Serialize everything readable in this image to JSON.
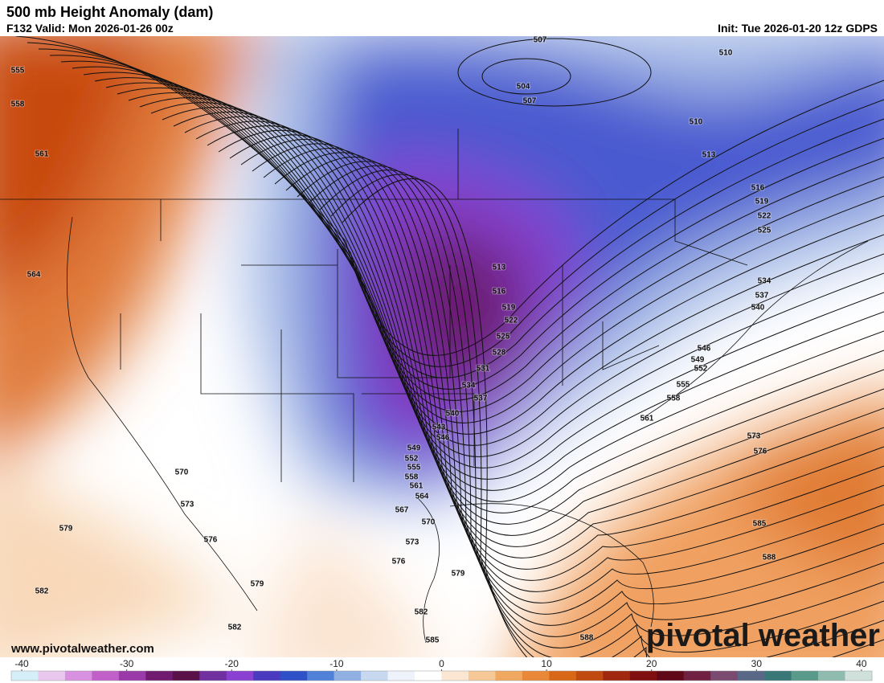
{
  "header": {
    "title": "500 mb Height Anomaly (dam)",
    "subtitle": "F132 Valid: Mon 2026-01-26 00z",
    "init": "Init: Tue 2026-01-20 12z GDPS"
  },
  "footer": {
    "url": "www.pivotalweather.com",
    "logo": "pivotal weather"
  },
  "contour_labels": [
    "555",
    "558",
    "561",
    "564",
    "570",
    "573",
    "576",
    "579",
    "579",
    "582",
    "582",
    "582",
    "585",
    "588",
    "588",
    "585",
    "576",
    "573",
    "561",
    "558",
    "555",
    "552",
    "549",
    "546",
    "540",
    "537",
    "534",
    "525",
    "522",
    "519",
    "516",
    "513",
    "510",
    "510",
    "507",
    "507",
    "504",
    "513",
    "516",
    "519",
    "522",
    "525",
    "528",
    "531",
    "534",
    "537",
    "540",
    "543",
    "546",
    "549",
    "552",
    "555",
    "558",
    "561",
    "564",
    "567",
    "570",
    "573",
    "576",
    "579"
  ],
  "colorbar": {
    "lim": [
      -41,
      41
    ],
    "ticks": [
      -40,
      -30,
      -20,
      -10,
      0,
      10,
      20,
      30,
      40
    ],
    "colors": [
      "#d6eef8",
      "#e8c8ee",
      "#d890e0",
      "#c060c8",
      "#9a3aa8",
      "#701a70",
      "#5a1048",
      "#7030a0",
      "#8a40d0",
      "#4a3ac0",
      "#3050c8",
      "#5080d8",
      "#90b0e4",
      "#c8d8f0",
      "#eef2fa",
      "#ffffff",
      "#fbe6d2",
      "#f6c898",
      "#f0a860",
      "#e88838",
      "#d86818",
      "#c04a10",
      "#a02810",
      "#801010",
      "#600818",
      "#702040",
      "#7a4a70",
      "#5a6888",
      "#3a7878",
      "#5a9a8a",
      "#90bcb0",
      "#d0e0da"
    ]
  }
}
